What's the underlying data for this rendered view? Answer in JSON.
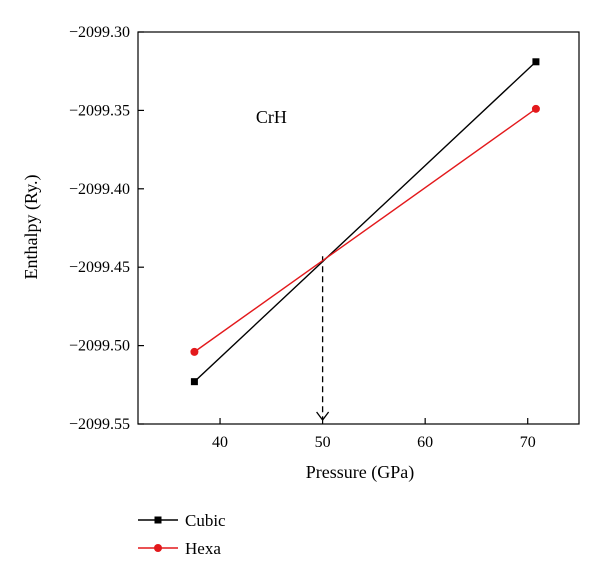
{
  "chart_data": {
    "type": "line",
    "title": "",
    "xlabel": "Pressure (GPa)",
    "ylabel": "Enthalpy (Ry.)",
    "xlim": [
      32,
      75
    ],
    "ylim": [
      -2099.55,
      -2099.3
    ],
    "x_ticks": [
      40,
      50,
      60,
      70
    ],
    "x_tick_labels": [
      "40",
      "50",
      "60",
      "70"
    ],
    "y_ticks": [
      -2099.3,
      -2099.35,
      -2099.4,
      -2099.45,
      -2099.5,
      -2099.55
    ],
    "y_tick_labels": [
      "−2099.30",
      "−2099.35",
      "−2099.40",
      "−2099.45",
      "−2099.50",
      "−2099.55"
    ],
    "grid": false,
    "legend_position": "below",
    "annotations": [
      {
        "text": "CrH",
        "x": 45,
        "y": -2099.358
      }
    ],
    "transition_marker": {
      "x": 50,
      "y_from": -2099.443,
      "y_to": -2099.55,
      "style": "dashed-arrow"
    },
    "series": [
      {
        "name": "Cubic",
        "color": "#000000",
        "marker": "square",
        "x": [
          37.5,
          70.8
        ],
        "y": [
          -2099.523,
          -2099.319
        ]
      },
      {
        "name": "Hexa",
        "color": "#e3191c",
        "marker": "circle",
        "x": [
          37.5,
          70.8
        ],
        "y": [
          -2099.504,
          -2099.349
        ]
      }
    ]
  }
}
